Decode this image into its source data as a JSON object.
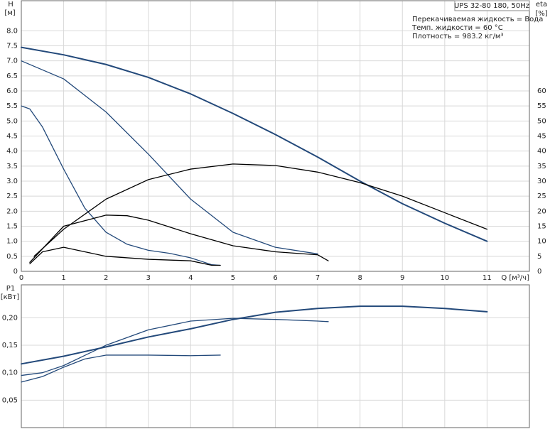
{
  "chart_data": [
    {
      "type": "line",
      "title": "UPS 32-80 180, 50Hz",
      "annotations": [
        "Перекачиваемая жидкость = Вода",
        "Темп. жидкости = 60 °C",
        "Плотность = 983.2 кг/м³"
      ],
      "y_label": "H",
      "y_unit": "[м]",
      "y2_label": "eta",
      "y2_unit": "[%]",
      "x_label": "Q [м³/ч]",
      "xlim": [
        0,
        12
      ],
      "xticks": [
        0,
        1,
        2,
        3,
        4,
        5,
        6,
        7,
        8,
        9,
        10,
        11
      ],
      "ylim": [
        0,
        9
      ],
      "yticks": [
        0,
        0.5,
        {
          "value": 1,
          "label": "1.0"
        },
        1.5,
        {
          "value": 2,
          "label": "2.0"
        },
        2.5,
        {
          "value": 3,
          "label": "3.0"
        },
        3.5,
        {
          "value": 4,
          "label": "4.0"
        },
        4.5,
        {
          "value": 5,
          "label": "5.0"
        },
        5.5,
        {
          "value": 6,
          "label": "6.0"
        },
        6.5,
        {
          "value": 7,
          "label": "7.0"
        },
        7.5,
        {
          "value": 8,
          "label": "8.0"
        }
      ],
      "y2lim": [
        0,
        90
      ],
      "y2ticks": [
        0,
        5,
        10,
        15,
        20,
        25,
        30,
        35,
        40,
        45,
        50,
        55,
        60
      ],
      "grid": true,
      "series": [
        {
          "color": "#23497a",
          "x": [
            0,
            1,
            2,
            3,
            4,
            5,
            6,
            7,
            8,
            9,
            10,
            11
          ],
          "values": [
            7.45,
            7.2,
            6.88,
            6.45,
            5.9,
            5.25,
            4.55,
            3.8,
            3.0,
            2.25,
            1.6,
            1.0
          ]
        },
        {
          "color": "#23497a",
          "x": [
            0,
            1,
            2,
            3,
            4,
            5,
            6,
            7
          ],
          "values": [
            7.0,
            6.4,
            5.3,
            3.9,
            2.4,
            1.3,
            0.8,
            0.58
          ]
        },
        {
          "color": "#23497a",
          "x": [
            0,
            0.2,
            0.5,
            1,
            1.5,
            2,
            2.5,
            3,
            3.5,
            4,
            4.5,
            4.7
          ],
          "values": [
            5.5,
            5.4,
            4.8,
            3.4,
            2.1,
            1.3,
            0.9,
            0.7,
            0.6,
            0.45,
            0.22,
            0.2
          ]
        },
        {
          "color": "#000000",
          "axis": "y2",
          "x": [
            0.3,
            1,
            2,
            3,
            4,
            5,
            6,
            7,
            8,
            9,
            10,
            11
          ],
          "values": [
            5,
            14,
            24,
            30.5,
            34,
            35.7,
            35.2,
            33,
            29.5,
            25,
            19.5,
            14
          ]
        },
        {
          "color": "#000000",
          "axis": "y2",
          "x": [
            0.2,
            1,
            2,
            2.5,
            3,
            4,
            5,
            6,
            7,
            7.25
          ],
          "values": [
            3,
            15,
            18.7,
            18.5,
            17,
            12.5,
            8.5,
            6.5,
            5.5,
            3.5
          ]
        },
        {
          "color": "#000000",
          "axis": "y2",
          "x": [
            0.2,
            0.5,
            1,
            1.5,
            2,
            3,
            4,
            4.5,
            4.7
          ],
          "values": [
            2.5,
            6.5,
            8,
            6.5,
            5,
            4,
            3.5,
            2,
            2
          ]
        }
      ]
    },
    {
      "type": "line",
      "y_label": "P1",
      "y_unit": "[кВт]",
      "xlim": [
        0,
        12
      ],
      "ylim": [
        0,
        0.26
      ],
      "yticks": [
        {
          "value": 0.05,
          "label": "0,05"
        },
        {
          "value": 0.1,
          "label": "0,10"
        },
        {
          "value": 0.15,
          "label": "0,15"
        },
        {
          "value": 0.2,
          "label": "0,20"
        }
      ],
      "grid": true,
      "series": [
        {
          "color": "#23497a",
          "x": [
            0,
            1,
            2,
            3,
            4,
            5,
            6,
            7,
            8,
            9,
            10,
            11
          ],
          "values": [
            0.116,
            0.13,
            0.147,
            0.165,
            0.18,
            0.197,
            0.21,
            0.217,
            0.221,
            0.221,
            0.217,
            0.211
          ]
        },
        {
          "color": "#23497a",
          "x": [
            0,
            0.5,
            1,
            2,
            3,
            4,
            5,
            6,
            7,
            7.25
          ],
          "values": [
            0.095,
            0.1,
            0.113,
            0.15,
            0.178,
            0.194,
            0.199,
            0.197,
            0.194,
            0.193
          ]
        },
        {
          "color": "#23497a",
          "x": [
            0,
            0.5,
            1,
            1.5,
            2,
            3,
            4,
            4.7
          ],
          "values": [
            0.083,
            0.093,
            0.11,
            0.125,
            0.132,
            0.132,
            0.131,
            0.132
          ]
        }
      ]
    }
  ]
}
